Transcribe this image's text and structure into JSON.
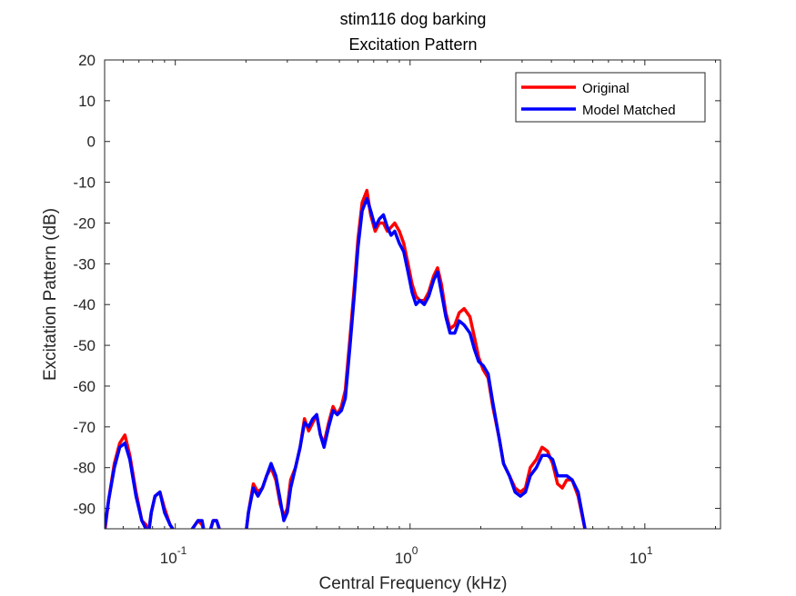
{
  "chart_data": {
    "type": "line",
    "title": [
      "stim116 dog barking",
      "Excitation Pattern"
    ],
    "xlabel": "Central Frequency (kHz)",
    "ylabel": "Excitation Pattern (dB)",
    "xscale": "log",
    "xlim": [
      0.05,
      21
    ],
    "ylim": [
      -95,
      20
    ],
    "xticks": [
      {
        "value": 0.1,
        "base": "10",
        "exp": "-1"
      },
      {
        "value": 1,
        "base": "10",
        "exp": "0"
      },
      {
        "value": 10,
        "base": "10",
        "exp": "1"
      }
    ],
    "yticks": [
      20,
      10,
      0,
      -10,
      -20,
      -30,
      -40,
      -50,
      -60,
      -70,
      -80,
      -90
    ],
    "legend": {
      "position": "top-right"
    },
    "series": [
      {
        "name": "Original",
        "color": "#ff0000",
        "points": [
          [
            0.05,
            -96
          ],
          [
            0.052,
            -88
          ],
          [
            0.055,
            -79
          ],
          [
            0.058,
            -74
          ],
          [
            0.061,
            -72
          ],
          [
            0.064,
            -77
          ],
          [
            0.068,
            -86
          ],
          [
            0.072,
            -93
          ],
          [
            0.075,
            -94
          ],
          [
            0.077,
            -96
          ],
          [
            0.079,
            -91
          ],
          [
            0.082,
            -87
          ],
          [
            0.086,
            -86
          ],
          [
            0.09,
            -90
          ],
          [
            0.095,
            -94
          ],
          [
            0.1,
            -96
          ],
          [
            0.115,
            -96
          ],
          [
            0.125,
            -93
          ],
          [
            0.13,
            -94
          ],
          [
            0.133,
            -96
          ],
          [
            0.14,
            -96
          ],
          [
            0.145,
            -93
          ],
          [
            0.15,
            -93
          ],
          [
            0.156,
            -96
          ],
          [
            0.2,
            -96
          ],
          [
            0.205,
            -91
          ],
          [
            0.215,
            -84
          ],
          [
            0.225,
            -86
          ],
          [
            0.235,
            -85
          ],
          [
            0.245,
            -82
          ],
          [
            0.256,
            -80
          ],
          [
            0.268,
            -83
          ],
          [
            0.28,
            -89
          ],
          [
            0.29,
            -92
          ],
          [
            0.3,
            -90
          ],
          [
            0.31,
            -83
          ],
          [
            0.325,
            -80
          ],
          [
            0.34,
            -75
          ],
          [
            0.355,
            -68
          ],
          [
            0.37,
            -71
          ],
          [
            0.385,
            -69
          ],
          [
            0.4,
            -67
          ],
          [
            0.415,
            -72
          ],
          [
            0.43,
            -74
          ],
          [
            0.45,
            -69
          ],
          [
            0.47,
            -65
          ],
          [
            0.49,
            -67
          ],
          [
            0.51,
            -65
          ],
          [
            0.53,
            -61
          ],
          [
            0.555,
            -48
          ],
          [
            0.58,
            -35
          ],
          [
            0.6,
            -24
          ],
          [
            0.625,
            -15
          ],
          [
            0.655,
            -12
          ],
          [
            0.68,
            -18
          ],
          [
            0.71,
            -22
          ],
          [
            0.74,
            -20
          ],
          [
            0.77,
            -20
          ],
          [
            0.8,
            -22
          ],
          [
            0.83,
            -21
          ],
          [
            0.86,
            -20
          ],
          [
            0.9,
            -22
          ],
          [
            0.94,
            -25
          ],
          [
            0.98,
            -30
          ],
          [
            1.02,
            -35
          ],
          [
            1.06,
            -38
          ],
          [
            1.1,
            -39
          ],
          [
            1.15,
            -39
          ],
          [
            1.2,
            -37
          ],
          [
            1.26,
            -33
          ],
          [
            1.31,
            -31
          ],
          [
            1.36,
            -35
          ],
          [
            1.42,
            -42
          ],
          [
            1.48,
            -46
          ],
          [
            1.55,
            -45
          ],
          [
            1.62,
            -42
          ],
          [
            1.7,
            -41
          ],
          [
            1.8,
            -43
          ],
          [
            1.88,
            -48
          ],
          [
            1.96,
            -53
          ],
          [
            2.05,
            -56
          ],
          [
            2.15,
            -58
          ],
          [
            2.25,
            -65
          ],
          [
            2.4,
            -73
          ],
          [
            2.5,
            -79
          ],
          [
            2.65,
            -82
          ],
          [
            2.8,
            -85
          ],
          [
            2.95,
            -86
          ],
          [
            3.1,
            -85
          ],
          [
            3.25,
            -80
          ],
          [
            3.45,
            -78
          ],
          [
            3.65,
            -75
          ],
          [
            3.85,
            -76
          ],
          [
            4.05,
            -79
          ],
          [
            4.25,
            -84
          ],
          [
            4.45,
            -85
          ],
          [
            4.65,
            -83
          ],
          [
            4.9,
            -83
          ],
          [
            5.2,
            -87
          ],
          [
            5.6,
            -96
          ]
        ]
      },
      {
        "name": "Model Matched",
        "color": "#0000ff",
        "points": [
          [
            0.05,
            -95
          ],
          [
            0.052,
            -88
          ],
          [
            0.055,
            -80
          ],
          [
            0.058,
            -75
          ],
          [
            0.061,
            -74
          ],
          [
            0.064,
            -78
          ],
          [
            0.068,
            -87
          ],
          [
            0.072,
            -93
          ],
          [
            0.075,
            -95
          ],
          [
            0.077,
            -96
          ],
          [
            0.079,
            -91
          ],
          [
            0.082,
            -87
          ],
          [
            0.086,
            -86
          ],
          [
            0.09,
            -91
          ],
          [
            0.095,
            -94
          ],
          [
            0.1,
            -96
          ],
          [
            0.115,
            -96
          ],
          [
            0.125,
            -93
          ],
          [
            0.13,
            -93
          ],
          [
            0.133,
            -96
          ],
          [
            0.14,
            -96
          ],
          [
            0.145,
            -93
          ],
          [
            0.15,
            -93
          ],
          [
            0.156,
            -96
          ],
          [
            0.2,
            -96
          ],
          [
            0.205,
            -91
          ],
          [
            0.215,
            -85
          ],
          [
            0.225,
            -87
          ],
          [
            0.235,
            -85
          ],
          [
            0.245,
            -82
          ],
          [
            0.256,
            -79
          ],
          [
            0.268,
            -82
          ],
          [
            0.28,
            -88
          ],
          [
            0.29,
            -93
          ],
          [
            0.3,
            -91
          ],
          [
            0.31,
            -85
          ],
          [
            0.325,
            -80
          ],
          [
            0.34,
            -75
          ],
          [
            0.355,
            -69
          ],
          [
            0.37,
            -70
          ],
          [
            0.385,
            -68
          ],
          [
            0.4,
            -67
          ],
          [
            0.415,
            -72
          ],
          [
            0.43,
            -75
          ],
          [
            0.45,
            -70
          ],
          [
            0.47,
            -66
          ],
          [
            0.49,
            -67
          ],
          [
            0.51,
            -66
          ],
          [
            0.53,
            -63
          ],
          [
            0.555,
            -50
          ],
          [
            0.58,
            -37
          ],
          [
            0.6,
            -26
          ],
          [
            0.625,
            -17
          ],
          [
            0.655,
            -14
          ],
          [
            0.68,
            -17
          ],
          [
            0.71,
            -21
          ],
          [
            0.74,
            -19
          ],
          [
            0.77,
            -18
          ],
          [
            0.8,
            -21
          ],
          [
            0.83,
            -23
          ],
          [
            0.86,
            -22
          ],
          [
            0.9,
            -25
          ],
          [
            0.94,
            -27
          ],
          [
            0.98,
            -32
          ],
          [
            1.02,
            -37
          ],
          [
            1.06,
            -40
          ],
          [
            1.1,
            -39
          ],
          [
            1.15,
            -40
          ],
          [
            1.2,
            -38
          ],
          [
            1.26,
            -34
          ],
          [
            1.31,
            -32
          ],
          [
            1.36,
            -37
          ],
          [
            1.42,
            -43
          ],
          [
            1.48,
            -47
          ],
          [
            1.55,
            -47
          ],
          [
            1.62,
            -44
          ],
          [
            1.7,
            -45
          ],
          [
            1.8,
            -47
          ],
          [
            1.88,
            -51
          ],
          [
            1.96,
            -54
          ],
          [
            2.05,
            -55
          ],
          [
            2.15,
            -57
          ],
          [
            2.25,
            -64
          ],
          [
            2.4,
            -73
          ],
          [
            2.5,
            -79
          ],
          [
            2.65,
            -82
          ],
          [
            2.8,
            -86
          ],
          [
            2.95,
            -87
          ],
          [
            3.1,
            -86
          ],
          [
            3.25,
            -82
          ],
          [
            3.45,
            -80
          ],
          [
            3.65,
            -77
          ],
          [
            3.85,
            -77
          ],
          [
            4.05,
            -78
          ],
          [
            4.25,
            -82
          ],
          [
            4.45,
            -82
          ],
          [
            4.65,
            -82
          ],
          [
            4.9,
            -83
          ],
          [
            5.2,
            -86
          ],
          [
            5.6,
            -96
          ]
        ]
      }
    ]
  }
}
